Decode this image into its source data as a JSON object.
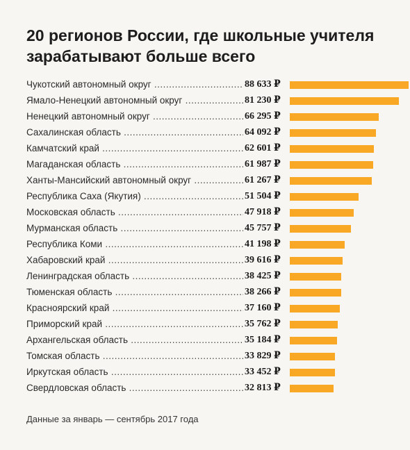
{
  "title": "20 регионов России, где школьные учителя зарабатывают больше всего",
  "note": "Данные за январь — сентябрь 2017 года",
  "currency": "₽",
  "colors": {
    "bar": "#f9a825",
    "background": "#f7f6f2"
  },
  "chart_data": {
    "type": "bar",
    "orientation": "horizontal",
    "title": "20 регионов России, где школьные учителя зарабатывают больше всего",
    "categories": [
      "Чукотский автономный округ",
      "Ямало-Ненецкий автономный округ",
      "Ненецкий автономный округ",
      "Сахалинская область",
      "Камчатский край",
      "Магаданская область",
      "Ханты-Мансийский автономный округ",
      "Республика Саха (Якутия)",
      "Московская область",
      "Мурманская область",
      "Республика Коми",
      "Хабаровский край",
      "Ленинградская область",
      "Тюменская область",
      "Красноярский край",
      "Приморский край",
      "Архангельская область",
      "Томская область",
      "Иркутская область",
      "Свердловская область"
    ],
    "values": [
      88633,
      81230,
      66295,
      64092,
      62601,
      61987,
      61267,
      51504,
      47918,
      45757,
      41198,
      39616,
      38425,
      38266,
      37160,
      35762,
      35184,
      33829,
      33452,
      32813
    ],
    "value_labels": [
      "88 633 ₽",
      "81 230 ₽",
      "66 295 ₽",
      "64 092 ₽",
      "62 601 ₽",
      "61 987 ₽",
      "61 267 ₽",
      "51 504 ₽",
      "47 918 ₽",
      "45 757 ₽",
      "41 198 ₽",
      "39 616 ₽",
      "38 425 ₽",
      "38 266 ₽",
      "37 160 ₽",
      "35 762 ₽",
      "35 184 ₽",
      "33 829 ₽",
      "33 452 ₽",
      "32 813 ₽"
    ],
    "unit": "₽",
    "grid": false,
    "legend": "none"
  }
}
